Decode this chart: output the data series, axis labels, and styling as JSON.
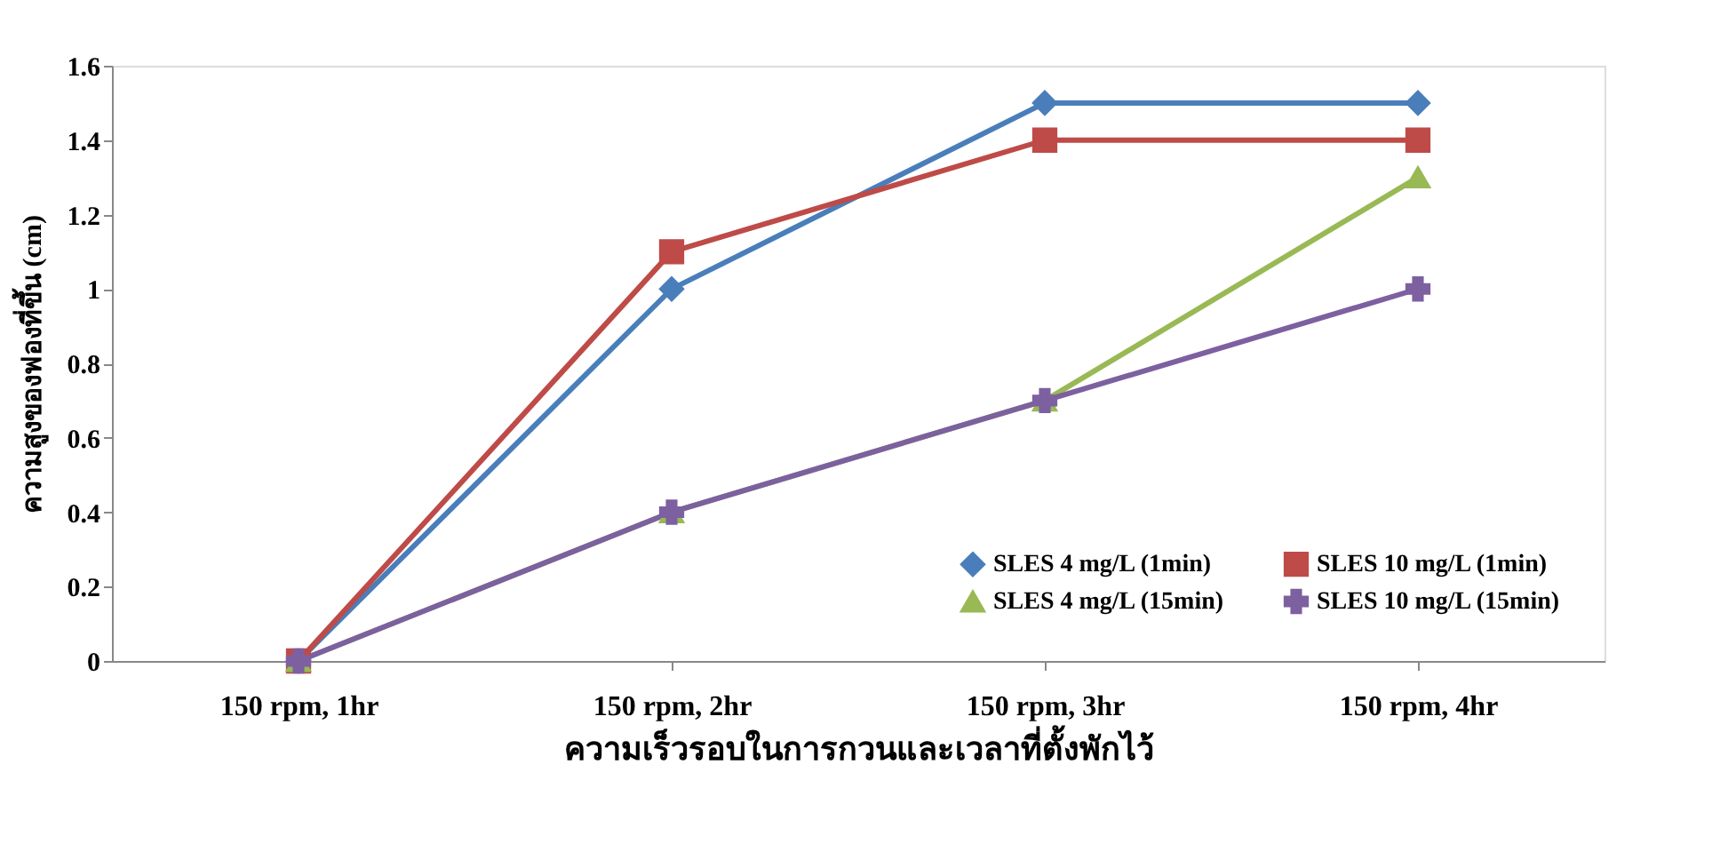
{
  "chart_data": {
    "type": "line",
    "xlabel": "ความเร็วรอบในการกวนและเวลาที่ตั้งพักไว้",
    "ylabel": "ความสูงของฟองที่ขึ้น (cm)",
    "categories": [
      "150 rpm, 1hr",
      "150 rpm, 2hr",
      "150 rpm, 3hr",
      "150 rpm, 4hr"
    ],
    "ylim": [
      0,
      1.6
    ],
    "yticks": [
      0,
      0.2,
      0.4,
      0.6,
      0.8,
      1,
      1.2,
      1.4,
      1.6
    ],
    "grid": false,
    "legend": "bottom right",
    "line_style": "solid",
    "series": [
      {
        "name": "SLES 4 mg/L (1min)",
        "color": "#4a7ebb",
        "marker": "diamond",
        "values": [
          0,
          1.0,
          1.5,
          1.5
        ]
      },
      {
        "name": "SLES 10 mg/L (1min)",
        "color": "#be4b48",
        "marker": "square",
        "values": [
          0,
          1.1,
          1.4,
          1.4
        ]
      },
      {
        "name": "SLES 4 mg/L (15min)",
        "color": "#98b954",
        "marker": "triangle",
        "values": [
          0,
          0.4,
          0.7,
          1.3
        ]
      },
      {
        "name": "SLES 10 mg/L (15min)",
        "color": "#7d60a0",
        "marker": "cross",
        "values": [
          0,
          0.4,
          0.7,
          1.0
        ]
      }
    ]
  }
}
